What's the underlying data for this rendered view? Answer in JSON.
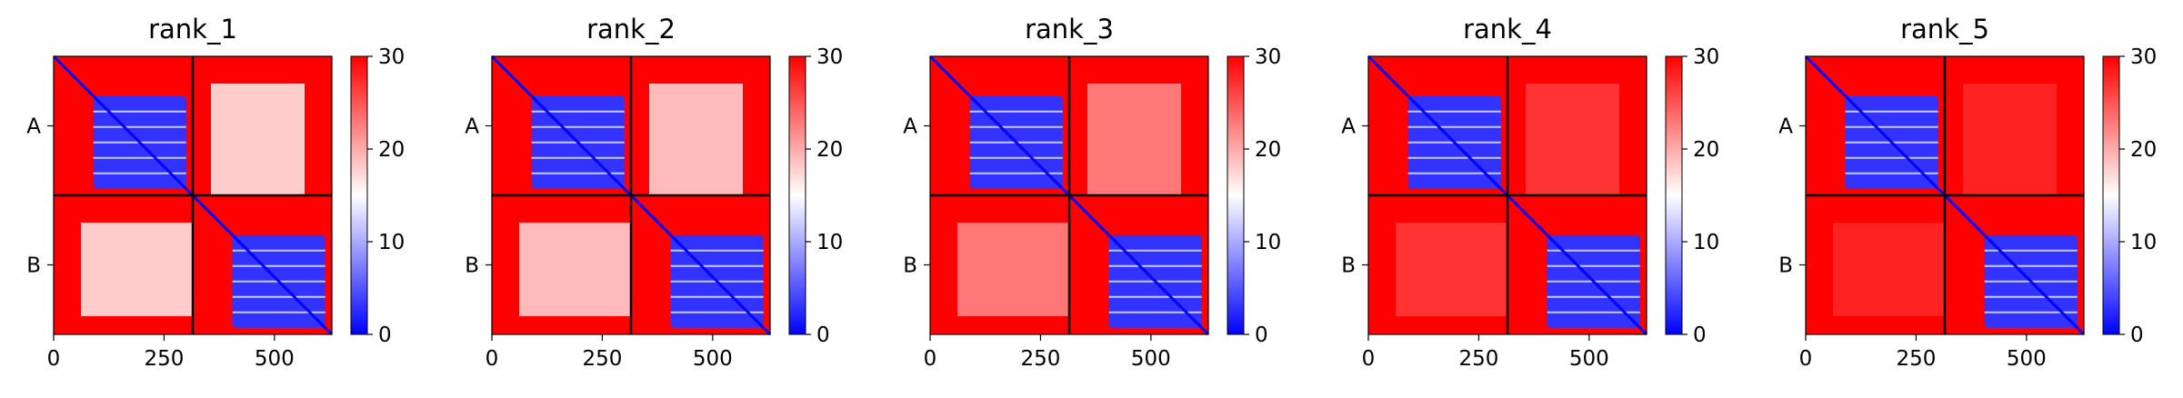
{
  "chart_data": {
    "type": "heatmap",
    "colormap": "bwr",
    "x_tick_values": [
      0,
      250,
      500
    ],
    "x_tick_labels": [
      "0",
      "250",
      "500"
    ],
    "y_tick_labels": [
      "A",
      "B"
    ],
    "xlim": [
      0,
      630
    ],
    "chain_boundary": 315,
    "colorbar": {
      "vmin": 0,
      "vmax": 30,
      "ticks": [
        0,
        10,
        20,
        30
      ],
      "tick_labels": [
        "0",
        "10",
        "20",
        "30"
      ]
    },
    "panels": [
      {
        "title": "rank_1",
        "inter_chain_level": 18
      },
      {
        "title": "rank_2",
        "inter_chain_level": 19
      },
      {
        "title": "rank_3",
        "inter_chain_level": 23
      },
      {
        "title": "rank_4",
        "inter_chain_level": 27
      },
      {
        "title": "rank_5",
        "inter_chain_level": 28
      }
    ],
    "intra_chain_block": {
      "start": 90,
      "end": 300,
      "level": 3,
      "outside_level": 30
    }
  }
}
